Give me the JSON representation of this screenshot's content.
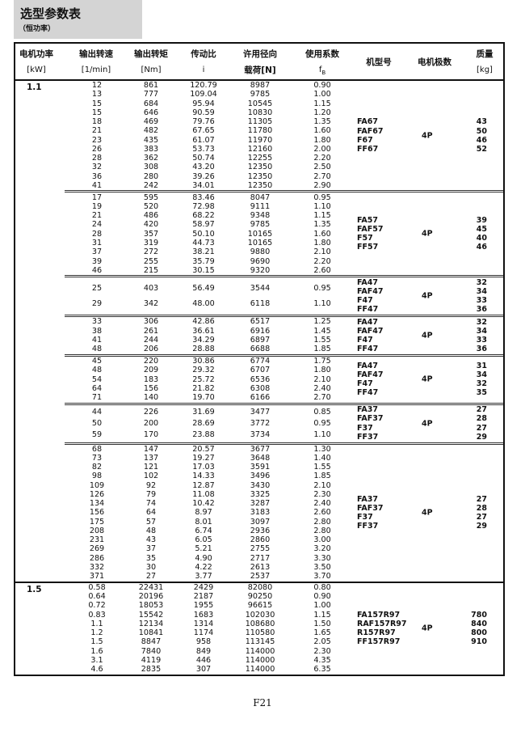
{
  "title": "选型参数表",
  "subtitle": "（恒功率）",
  "headers": {
    "power": "电机功率",
    "power_unit": "[kW]",
    "speed": "输出转速",
    "speed_unit": "[1/min]",
    "torque": "输出转矩",
    "torque_unit": "[Nm]",
    "ratio": "传动比",
    "ratio_unit": "i",
    "load": "许用径向",
    "load_unit": "载荷[N]",
    "fb": "使用系数",
    "fb_unit": "f",
    "fb_sub": "B",
    "model": "机型号",
    "poles": "电机极数",
    "mass": "质量",
    "mass_unit": "[kg]"
  },
  "sections": [
    {
      "power": "1.1",
      "groups": [
        {
          "rows": [
            [
              "12",
              "861",
              "120.79",
              "8987",
              "0.90"
            ],
            [
              "13",
              "777",
              "109.04",
              "9785",
              "1.00"
            ],
            [
              "15",
              "684",
              "95.94",
              "10545",
              "1.15"
            ],
            [
              "15",
              "646",
              "90.59",
              "10830",
              "1.20"
            ],
            [
              "18",
              "469",
              "79.76",
              "11305",
              "1.35"
            ],
            [
              "21",
              "482",
              "67.65",
              "11780",
              "1.60"
            ],
            [
              "23",
              "435",
              "61.07",
              "11970",
              "1.80"
            ],
            [
              "26",
              "383",
              "53.73",
              "12160",
              "2.00"
            ],
            [
              "28",
              "362",
              "50.74",
              "12255",
              "2.20"
            ],
            [
              "32",
              "308",
              "43.20",
              "12350",
              "2.50"
            ],
            [
              "36",
              "280",
              "39.26",
              "12350",
              "2.70"
            ],
            [
              "41",
              "242",
              "34.01",
              "12350",
              "2.90"
            ]
          ],
          "models": [
            [
              "FA67",
              "43"
            ],
            [
              "FAF67",
              "50"
            ],
            [
              "F67",
              "46"
            ],
            [
              "FF67",
              "52"
            ]
          ],
          "poles": "4P"
        },
        {
          "rows": [
            [
              "17",
              "595",
              "83.46",
              "8047",
              "0.95"
            ],
            [
              "19",
              "520",
              "72.98",
              "9111",
              "1.10"
            ],
            [
              "21",
              "486",
              "68.22",
              "9348",
              "1.15"
            ],
            [
              "24",
              "420",
              "58.97",
              "9785",
              "1.35"
            ],
            [
              "28",
              "357",
              "50.10",
              "10165",
              "1.60"
            ],
            [
              "31",
              "319",
              "44.73",
              "10165",
              "1.80"
            ],
            [
              "37",
              "272",
              "38.21",
              "9880",
              "2.10"
            ],
            [
              "39",
              "255",
              "35.79",
              "9690",
              "2.20"
            ],
            [
              "46",
              "215",
              "30.15",
              "9320",
              "2.60"
            ]
          ],
          "models": [
            [
              "FA57",
              "39"
            ],
            [
              "FAF57",
              "45"
            ],
            [
              "F57",
              "40"
            ],
            [
              "FF57",
              "46"
            ]
          ],
          "poles": "4P"
        },
        {
          "rows": [
            [
              "25",
              "403",
              "56.49",
              "3544",
              "0.95"
            ],
            [
              "29",
              "342",
              "48.00",
              "6118",
              "1.10"
            ]
          ],
          "models": [
            [
              "FA47",
              "32"
            ],
            [
              "FAF47",
              "34"
            ],
            [
              "F47",
              "33"
            ],
            [
              "FF47",
              "36"
            ]
          ],
          "poles": "4P"
        },
        {
          "rows": [
            [
              "33",
              "306",
              "42.86",
              "6517",
              "1.25"
            ],
            [
              "38",
              "261",
              "36.61",
              "6916",
              "1.45"
            ],
            [
              "41",
              "244",
              "34.29",
              "6897",
              "1.55"
            ],
            [
              "48",
              "206",
              "28.88",
              "6688",
              "1.85"
            ]
          ],
          "models": [
            [
              "FA47",
              "32"
            ],
            [
              "FAF47",
              "34"
            ],
            [
              "F47",
              "33"
            ],
            [
              "FF47",
              "36"
            ]
          ],
          "poles": "4P"
        },
        {
          "rows": [
            [
              "45",
              "220",
              "30.86",
              "6774",
              "1.75"
            ],
            [
              "48",
              "209",
              "29.32",
              "6707",
              "1.80"
            ],
            [
              "54",
              "183",
              "25.72",
              "6536",
              "2.10"
            ],
            [
              "64",
              "156",
              "21.82",
              "6308",
              "2.40"
            ],
            [
              "71",
              "140",
              "19.70",
              "6166",
              "2.70"
            ]
          ],
          "models": [
            [
              "FA47",
              "31"
            ],
            [
              "FAF47",
              "34"
            ],
            [
              "F47",
              "32"
            ],
            [
              "FF47",
              "35"
            ]
          ],
          "poles": "4P"
        },
        {
          "rows": [
            [
              "44",
              "226",
              "31.69",
              "3477",
              "0.85"
            ],
            [
              "50",
              "200",
              "28.69",
              "3772",
              "0.95"
            ],
            [
              "59",
              "170",
              "23.88",
              "3734",
              "1.10"
            ]
          ],
          "models": [
            [
              "FA37",
              "27"
            ],
            [
              "FAF37",
              "28"
            ],
            [
              "F37",
              "27"
            ],
            [
              "FF37",
              "29"
            ]
          ],
          "poles": "4P"
        },
        {
          "rows": [
            [
              "68",
              "147",
              "20.57",
              "3677",
              "1.30"
            ],
            [
              "73",
              "137",
              "19.27",
              "3648",
              "1.40"
            ],
            [
              "82",
              "121",
              "17.03",
              "3591",
              "1.55"
            ],
            [
              "98",
              "102",
              "14.33",
              "3496",
              "1.85"
            ],
            [
              "109",
              "92",
              "12.87",
              "3430",
              "2.10"
            ],
            [
              "126",
              "79",
              "11.08",
              "3325",
              "2.30"
            ],
            [
              "134",
              "74",
              "10.42",
              "3287",
              "2.40"
            ],
            [
              "156",
              "64",
              "8.97",
              "3183",
              "2.60"
            ],
            [
              "175",
              "57",
              "8.01",
              "3097",
              "2.80"
            ],
            [
              "208",
              "48",
              "6.74",
              "2936",
              "2.80"
            ],
            [
              "231",
              "43",
              "6.05",
              "2860",
              "3.00"
            ],
            [
              "269",
              "37",
              "5.21",
              "2755",
              "3.20"
            ],
            [
              "286",
              "35",
              "4.90",
              "2717",
              "3.30"
            ],
            [
              "332",
              "30",
              "4.22",
              "2613",
              "3.50"
            ],
            [
              "371",
              "27",
              "3.77",
              "2537",
              "3.70"
            ]
          ],
          "models": [
            [
              "FA37",
              "27"
            ],
            [
              "FAF37",
              "28"
            ],
            [
              "F37",
              "27"
            ],
            [
              "FF37",
              "29"
            ]
          ],
          "poles": "4P"
        }
      ]
    },
    {
      "power": "1.5",
      "groups": [
        {
          "rows": [
            [
              "0.58",
              "22431",
              "2429",
              "82080",
              "0.80"
            ],
            [
              "0.64",
              "20196",
              "2187",
              "90250",
              "0.90"
            ],
            [
              "0.72",
              "18053",
              "1955",
              "96615",
              "1.00"
            ],
            [
              "0.83",
              "15542",
              "1683",
              "102030",
              "1.15"
            ],
            [
              "1.1",
              "12134",
              "1314",
              "108680",
              "1.50"
            ],
            [
              "1.2",
              "10841",
              "1174",
              "110580",
              "1.65"
            ],
            [
              "1.5",
              "8847",
              "958",
              "113145",
              "2.05"
            ],
            [
              "1.6",
              "7840",
              "849",
              "114000",
              "2.30"
            ],
            [
              "3.1",
              "4119",
              "446",
              "114000",
              "4.35"
            ],
            [
              "4.6",
              "2835",
              "307",
              "114000",
              "6.35"
            ]
          ],
          "models": [
            [
              "FA157R97",
              "780"
            ],
            [
              "RAF157R97",
              "840"
            ],
            [
              "R157R97",
              "800"
            ],
            [
              "FF157R97",
              "910"
            ]
          ],
          "poles": "4P"
        }
      ]
    }
  ],
  "footer": "F21"
}
